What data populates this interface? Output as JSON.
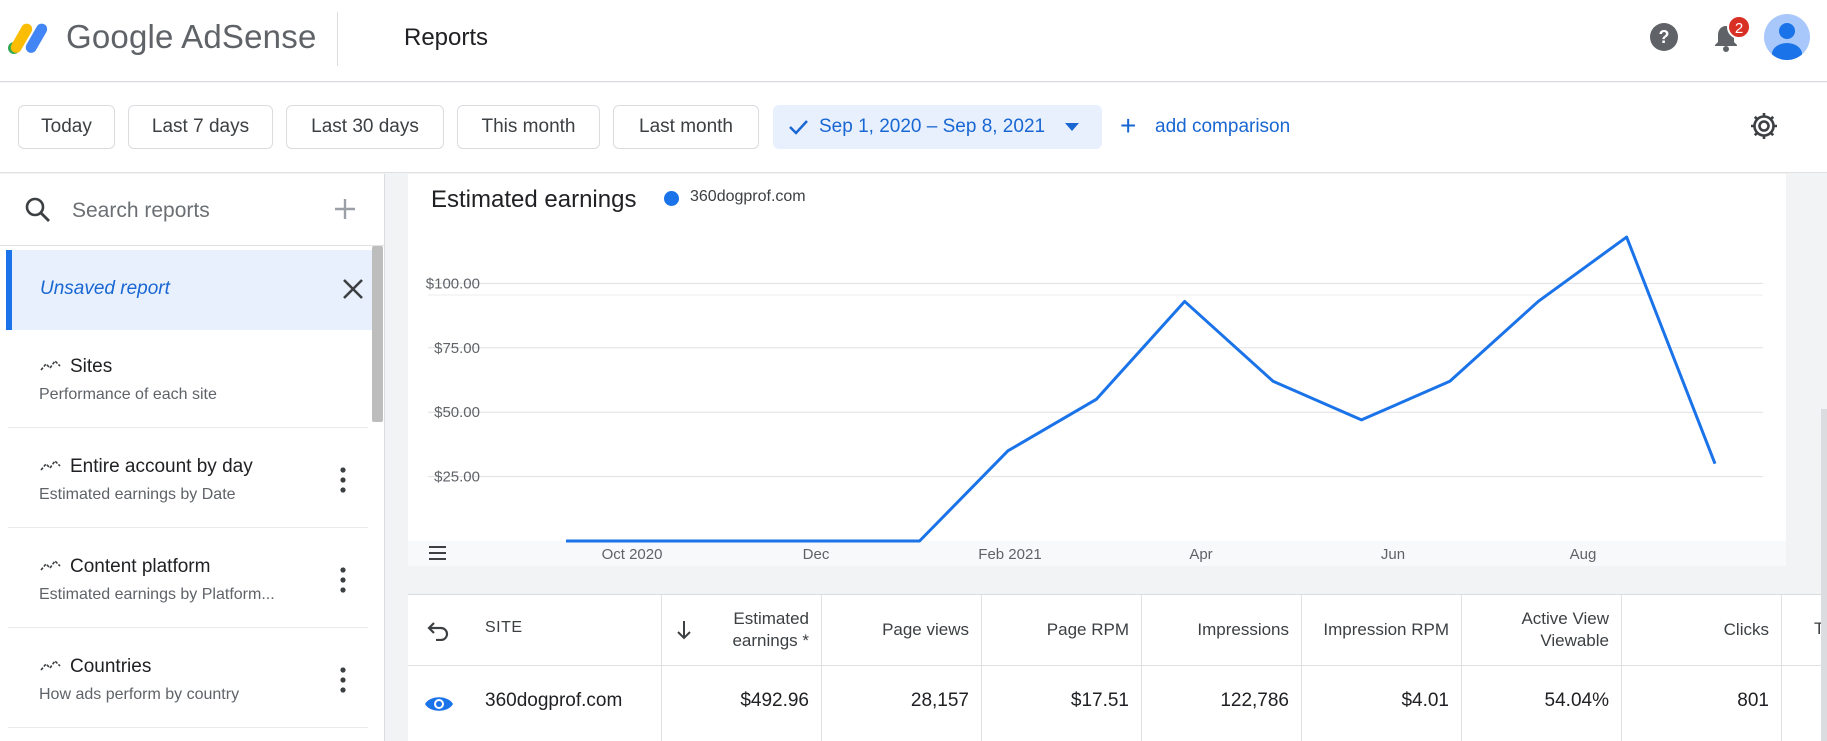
{
  "app": {
    "name": "Google AdSense",
    "page_title": "Reports",
    "notification_count": "2"
  },
  "filters": {
    "presets": [
      "Today",
      "Last 7 days",
      "Last 30 days",
      "This month",
      "Last month"
    ],
    "date_range": "Sep 1, 2020 – Sep 8, 2021",
    "add_comparison": "add comparison"
  },
  "sidebar": {
    "search_placeholder": "Search reports",
    "unsaved": "Unsaved report",
    "items": [
      {
        "title": "Sites",
        "subtitle": "Performance of each site"
      },
      {
        "title": "Entire account by day",
        "subtitle": "Estimated earnings by Date"
      },
      {
        "title": "Content platform",
        "subtitle": "Estimated earnings by Platform..."
      },
      {
        "title": "Countries",
        "subtitle": "How ads perform by country"
      }
    ]
  },
  "chart_data": {
    "type": "line",
    "title": "Estimated earnings",
    "series": [
      {
        "name": "360dogprof.com",
        "color": "#1a73e8",
        "values": [
          0,
          0,
          0,
          0,
          0,
          35,
          55,
          93,
          62,
          47,
          62,
          93,
          118,
          30
        ]
      }
    ],
    "x_ticks": [
      "Oct 2020",
      "Dec",
      "Feb 2021",
      "Apr",
      "Jun",
      "Aug"
    ],
    "y_ticks": [
      "$25.00",
      "$50.00",
      "$75.00",
      "$100.00"
    ],
    "ylim": [
      0,
      125
    ],
    "grid": true
  },
  "table": {
    "headers": [
      "SITE",
      "Estimated earnings *",
      "Page views",
      "Page RPM",
      "Impressions",
      "Impression RPM",
      "Active View Viewable",
      "Clicks"
    ],
    "rows": [
      {
        "site": "360dogprof.com",
        "earnings": "$492.96",
        "page_views": "28,157",
        "page_rpm": "$17.51",
        "impressions": "122,786",
        "impression_rpm": "$4.01",
        "viewable": "54.04%",
        "clicks": "801"
      }
    ]
  }
}
